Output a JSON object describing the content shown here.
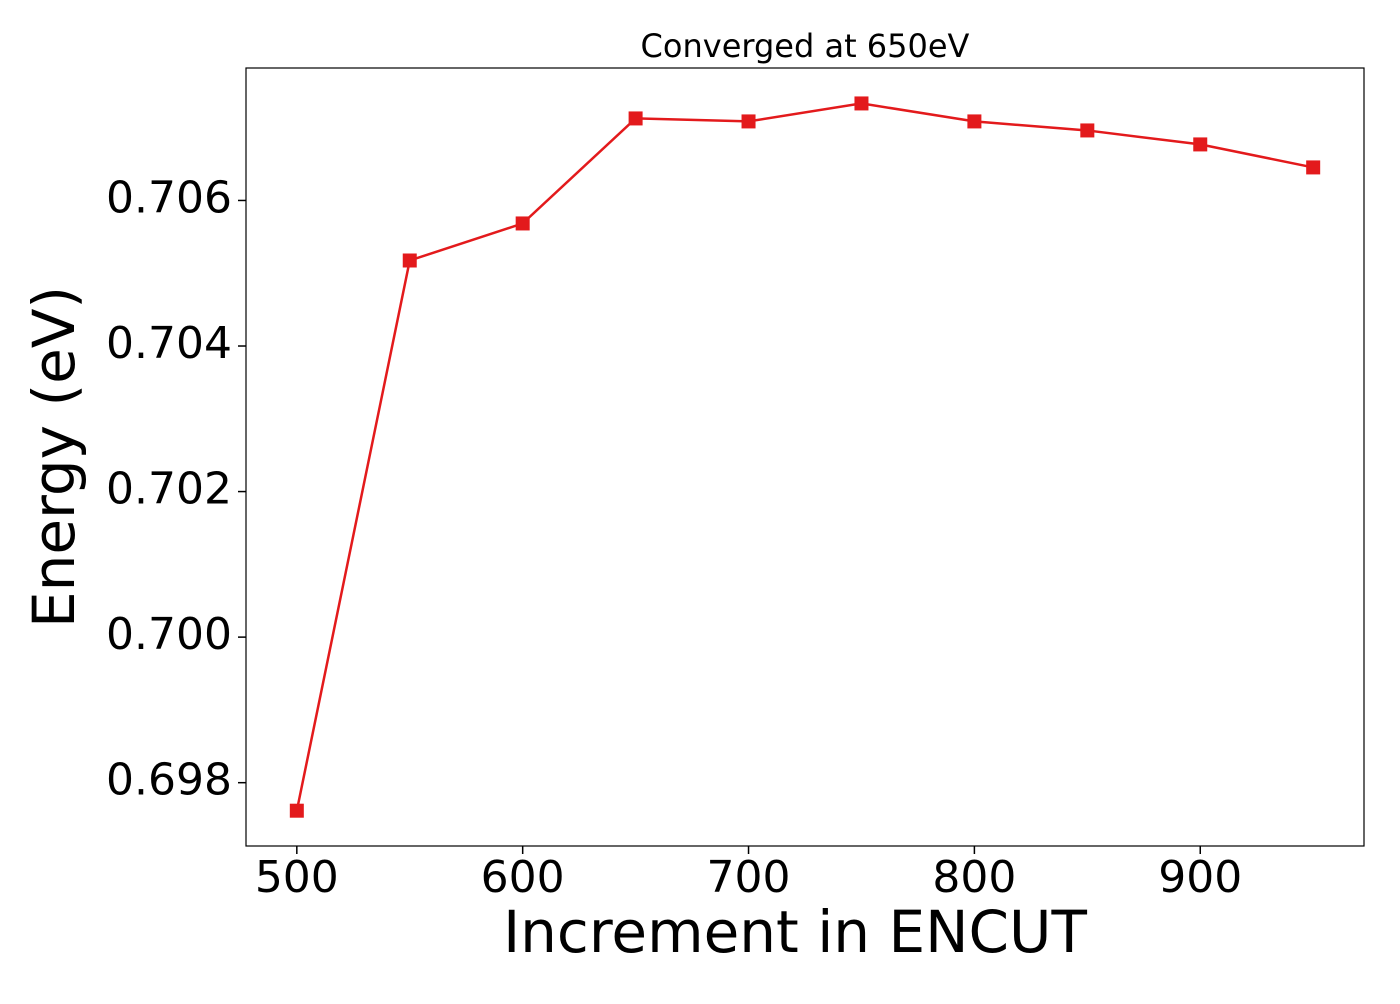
{
  "chart_data": {
    "type": "line",
    "title": "Converged at 650eV",
    "xlabel": "Increment in ENCUT",
    "ylabel": "Energy (eV)",
    "x": [
      500,
      550,
      600,
      650,
      700,
      750,
      800,
      850,
      900,
      950
    ],
    "series": [
      {
        "color": "#e31a1c",
        "marker": "square",
        "values": [
          0.697615,
          0.705175,
          0.705684,
          0.707127,
          0.707086,
          0.707333,
          0.707086,
          0.706962,
          0.70677,
          0.706454
        ]
      }
    ],
    "xlim": [
      477.5,
      972.5
    ],
    "xticks": [
      500,
      600,
      700,
      800,
      900
    ],
    "ylim": [
      0.69713,
      0.70782
    ],
    "yticks": [
      0.698,
      {
        "value": 0.7,
        "label": "0.700"
      },
      0.702,
      0.704,
      0.706
    ],
    "grid": false
  }
}
